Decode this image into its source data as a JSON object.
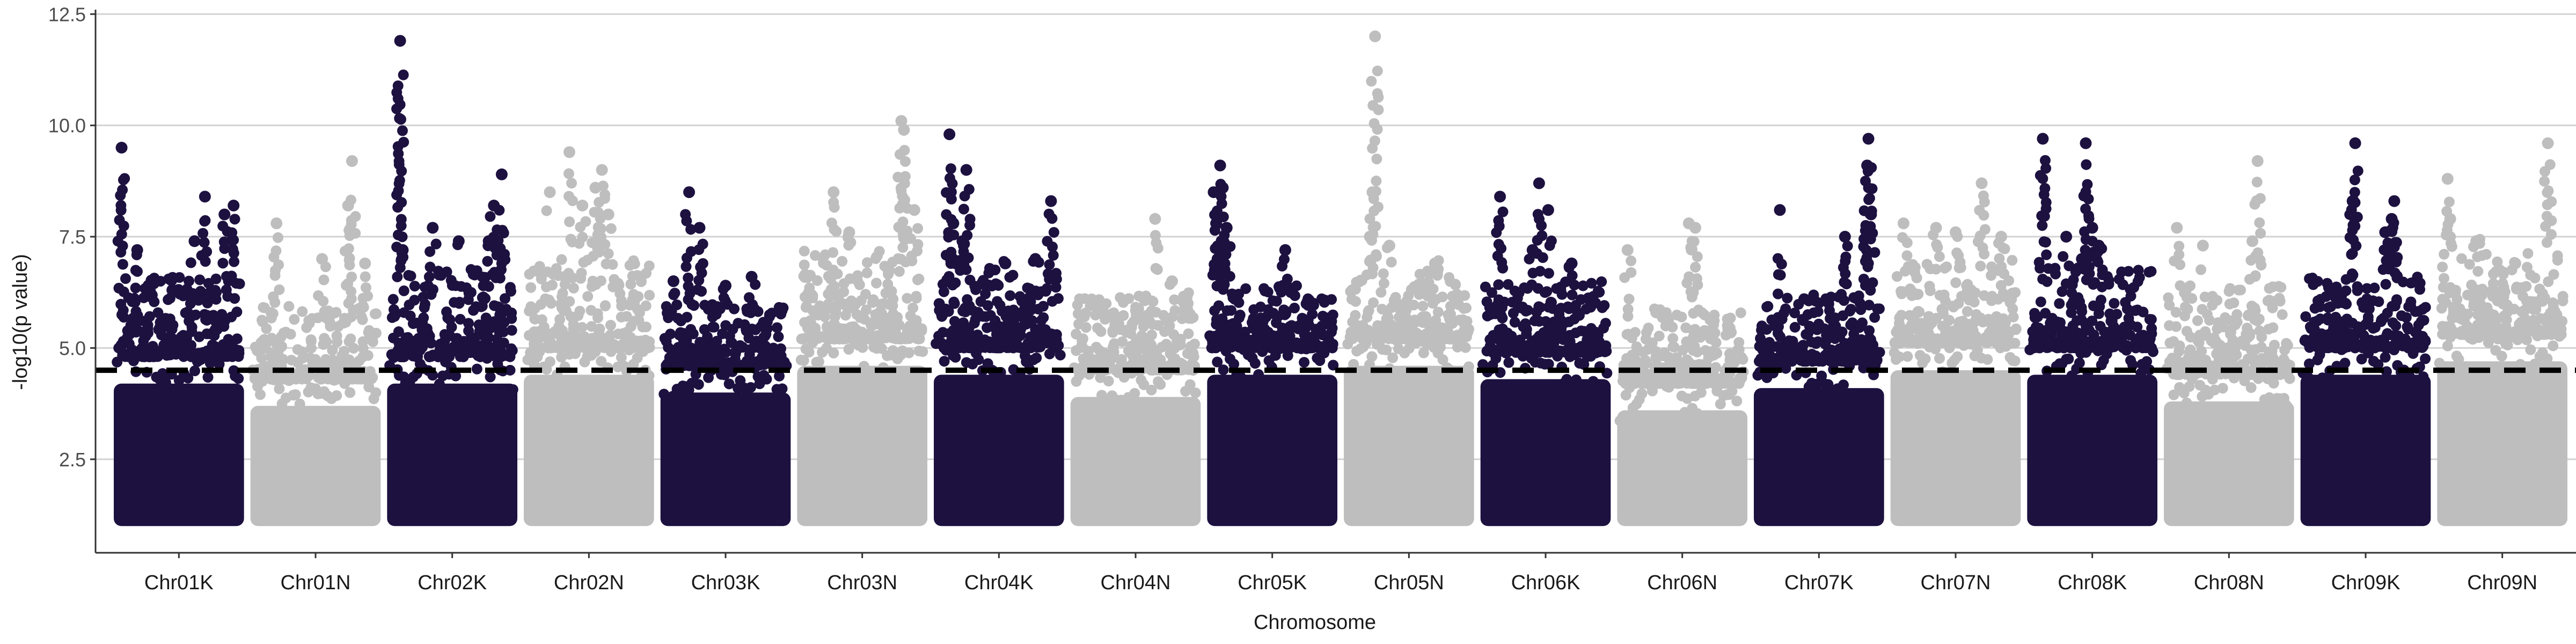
{
  "chart_data": {
    "type": "scatter",
    "title": "",
    "xlabel": "Chromosome",
    "ylabel": "-log10(p value)",
    "ylim": [
      0.4,
      12.6
    ],
    "y_ticks": [
      "2.5",
      "5.0",
      "7.5",
      "10.0",
      "12.5"
    ],
    "y_tick_values": [
      2.5,
      5.0,
      7.5,
      10.0,
      12.5
    ],
    "grid": "horizontal",
    "legend": "none",
    "threshold": 4.5,
    "colors": {
      "dark": "#1d1140",
      "light": "#bebebe",
      "threshold": "#000000"
    },
    "categories": [
      "Chr01K",
      "Chr01N",
      "Chr02K",
      "Chr02N",
      "Chr03K",
      "Chr03N",
      "Chr04K",
      "Chr04N",
      "Chr05K",
      "Chr05N",
      "Chr06K",
      "Chr06N",
      "Chr07K",
      "Chr07N",
      "Chr08K",
      "Chr08N",
      "Chr09K",
      "Chr09N"
    ],
    "series": [
      {
        "color": "dark",
        "category": "Chr01K",
        "floor": 1.0,
        "dense_top": 4.8,
        "scatter_max": 6.6,
        "peaks": [
          [
            0.06,
            9.5
          ],
          [
            0.18,
            7.2
          ],
          [
            0.45,
            6.3
          ],
          [
            0.62,
            7.4
          ],
          [
            0.7,
            8.4
          ],
          [
            0.85,
            8.0
          ],
          [
            0.92,
            8.2
          ]
        ]
      },
      {
        "color": "light",
        "category": "Chr01N",
        "floor": 1.0,
        "dense_top": 4.3,
        "scatter_max": 6.0,
        "peaks": [
          [
            0.2,
            7.8
          ],
          [
            0.55,
            7.0
          ],
          [
            0.75,
            8.2
          ],
          [
            0.78,
            9.2
          ],
          [
            0.88,
            6.9
          ]
        ]
      },
      {
        "color": "dark",
        "category": "Chr02K",
        "floor": 1.0,
        "dense_top": 4.8,
        "scatter_max": 6.8,
        "peaks": [
          [
            0.1,
            11.9
          ],
          [
            0.12,
            7.2
          ],
          [
            0.35,
            7.7
          ],
          [
            0.55,
            7.4
          ],
          [
            0.78,
            7.4
          ],
          [
            0.82,
            8.2
          ],
          [
            0.88,
            8.9
          ]
        ]
      },
      {
        "color": "light",
        "category": "Chr02N",
        "floor": 1.0,
        "dense_top": 5.0,
        "scatter_max": 7.0,
        "peaks": [
          [
            0.2,
            8.5
          ],
          [
            0.35,
            9.4
          ],
          [
            0.45,
            8.2
          ],
          [
            0.55,
            8.6
          ],
          [
            0.6,
            9.0
          ],
          [
            0.65,
            8.0
          ]
        ]
      },
      {
        "color": "dark",
        "category": "Chr03K",
        "floor": 1.0,
        "dense_top": 4.6,
        "scatter_max": 6.0,
        "peaks": [
          [
            0.1,
            6.5
          ],
          [
            0.22,
            8.5
          ],
          [
            0.3,
            7.7
          ],
          [
            0.5,
            6.4
          ],
          [
            0.7,
            6.6
          ]
        ]
      },
      {
        "color": "light",
        "category": "Chr03N",
        "floor": 1.0,
        "dense_top": 5.2,
        "scatter_max": 7.2,
        "peaks": [
          [
            0.28,
            8.5
          ],
          [
            0.4,
            7.6
          ],
          [
            0.8,
            10.1
          ],
          [
            0.82,
            9.9
          ],
          [
            0.9,
            8.1
          ]
        ]
      },
      {
        "color": "dark",
        "category": "Chr04K",
        "floor": 1.0,
        "dense_top": 5.0,
        "scatter_max": 6.8,
        "peaks": [
          [
            0.12,
            9.8
          ],
          [
            0.15,
            7.8
          ],
          [
            0.25,
            9.0
          ],
          [
            0.22,
            7.4
          ],
          [
            0.55,
            6.9
          ],
          [
            0.78,
            7.0
          ],
          [
            0.9,
            8.3
          ]
        ]
      },
      {
        "color": "light",
        "category": "Chr04N",
        "floor": 1.0,
        "dense_top": 4.5,
        "scatter_max": 6.2,
        "peaks": [
          [
            0.65,
            7.9
          ],
          [
            0.78,
            6.5
          ],
          [
            0.9,
            6.0
          ]
        ]
      },
      {
        "color": "dark",
        "category": "Chr05K",
        "floor": 1.0,
        "dense_top": 5.0,
        "scatter_max": 6.4,
        "peaks": [
          [
            0.05,
            8.5
          ],
          [
            0.1,
            9.1
          ],
          [
            0.12,
            8.6
          ],
          [
            0.08,
            7.0
          ],
          [
            0.15,
            7.7
          ],
          [
            0.6,
            7.2
          ]
        ]
      },
      {
        "color": "light",
        "category": "Chr05N",
        "floor": 1.0,
        "dense_top": 5.2,
        "scatter_max": 6.8,
        "peaks": [
          [
            0.24,
            12.0
          ],
          [
            0.22,
            8.5
          ],
          [
            0.2,
            7.5
          ],
          [
            0.35,
            7.3
          ],
          [
            0.7,
            6.9
          ]
        ]
      },
      {
        "color": "dark",
        "category": "Chr06K",
        "floor": 1.0,
        "dense_top": 4.9,
        "scatter_max": 6.5,
        "peaks": [
          [
            0.15,
            8.4
          ],
          [
            0.45,
            8.7
          ],
          [
            0.52,
            8.1
          ],
          [
            0.4,
            7.2
          ],
          [
            0.7,
            6.9
          ]
        ]
      },
      {
        "color": "light",
        "category": "Chr06N",
        "floor": 1.0,
        "dense_top": 4.2,
        "scatter_max": 5.8,
        "peaks": [
          [
            0.08,
            7.2
          ],
          [
            0.3,
            5.8
          ],
          [
            0.55,
            7.8
          ],
          [
            0.6,
            7.7
          ],
          [
            0.85,
            5.5
          ]
        ]
      },
      {
        "color": "dark",
        "category": "Chr07K",
        "floor": 1.0,
        "dense_top": 4.7,
        "scatter_max": 6.2,
        "peaks": [
          [
            0.2,
            8.1
          ],
          [
            0.7,
            7.5
          ],
          [
            0.88,
            9.7
          ],
          [
            0.87,
            9.1
          ],
          [
            0.9,
            8.0
          ]
        ]
      },
      {
        "color": "light",
        "category": "Chr07N",
        "floor": 1.0,
        "dense_top": 5.1,
        "scatter_max": 7.0,
        "peaks": [
          [
            0.1,
            7.8
          ],
          [
            0.35,
            7.7
          ],
          [
            0.5,
            7.6
          ],
          [
            0.7,
            8.7
          ],
          [
            0.85,
            7.5
          ]
        ]
      },
      {
        "color": "dark",
        "category": "Chr08K",
        "floor": 1.0,
        "dense_top": 5.0,
        "scatter_max": 6.8,
        "peaks": [
          [
            0.12,
            9.7
          ],
          [
            0.45,
            9.6
          ],
          [
            0.3,
            7.5
          ],
          [
            0.5,
            7.7
          ],
          [
            0.55,
            7.3
          ],
          [
            0.42,
            7.0
          ]
        ]
      },
      {
        "color": "light",
        "category": "Chr08N",
        "floor": 1.0,
        "dense_top": 4.4,
        "scatter_max": 6.4,
        "peaks": [
          [
            0.1,
            7.7
          ],
          [
            0.3,
            7.3
          ],
          [
            0.72,
            9.2
          ],
          [
            0.68,
            7.4
          ]
        ]
      },
      {
        "color": "dark",
        "category": "Chr09K",
        "floor": 1.0,
        "dense_top": 5.0,
        "scatter_max": 6.6,
        "peaks": [
          [
            0.42,
            9.6
          ],
          [
            0.4,
            8.3
          ],
          [
            0.72,
            8.3
          ],
          [
            0.7,
            7.9
          ],
          [
            0.65,
            7.6
          ]
        ]
      },
      {
        "color": "light",
        "category": "Chr09N",
        "floor": 1.0,
        "dense_top": 5.3,
        "scatter_max": 7.2,
        "peaks": [
          [
            0.08,
            8.8
          ],
          [
            0.1,
            7.9
          ],
          [
            0.3,
            7.4
          ],
          [
            0.85,
            9.6
          ],
          [
            0.6,
            6.9
          ]
        ]
      }
    ]
  }
}
